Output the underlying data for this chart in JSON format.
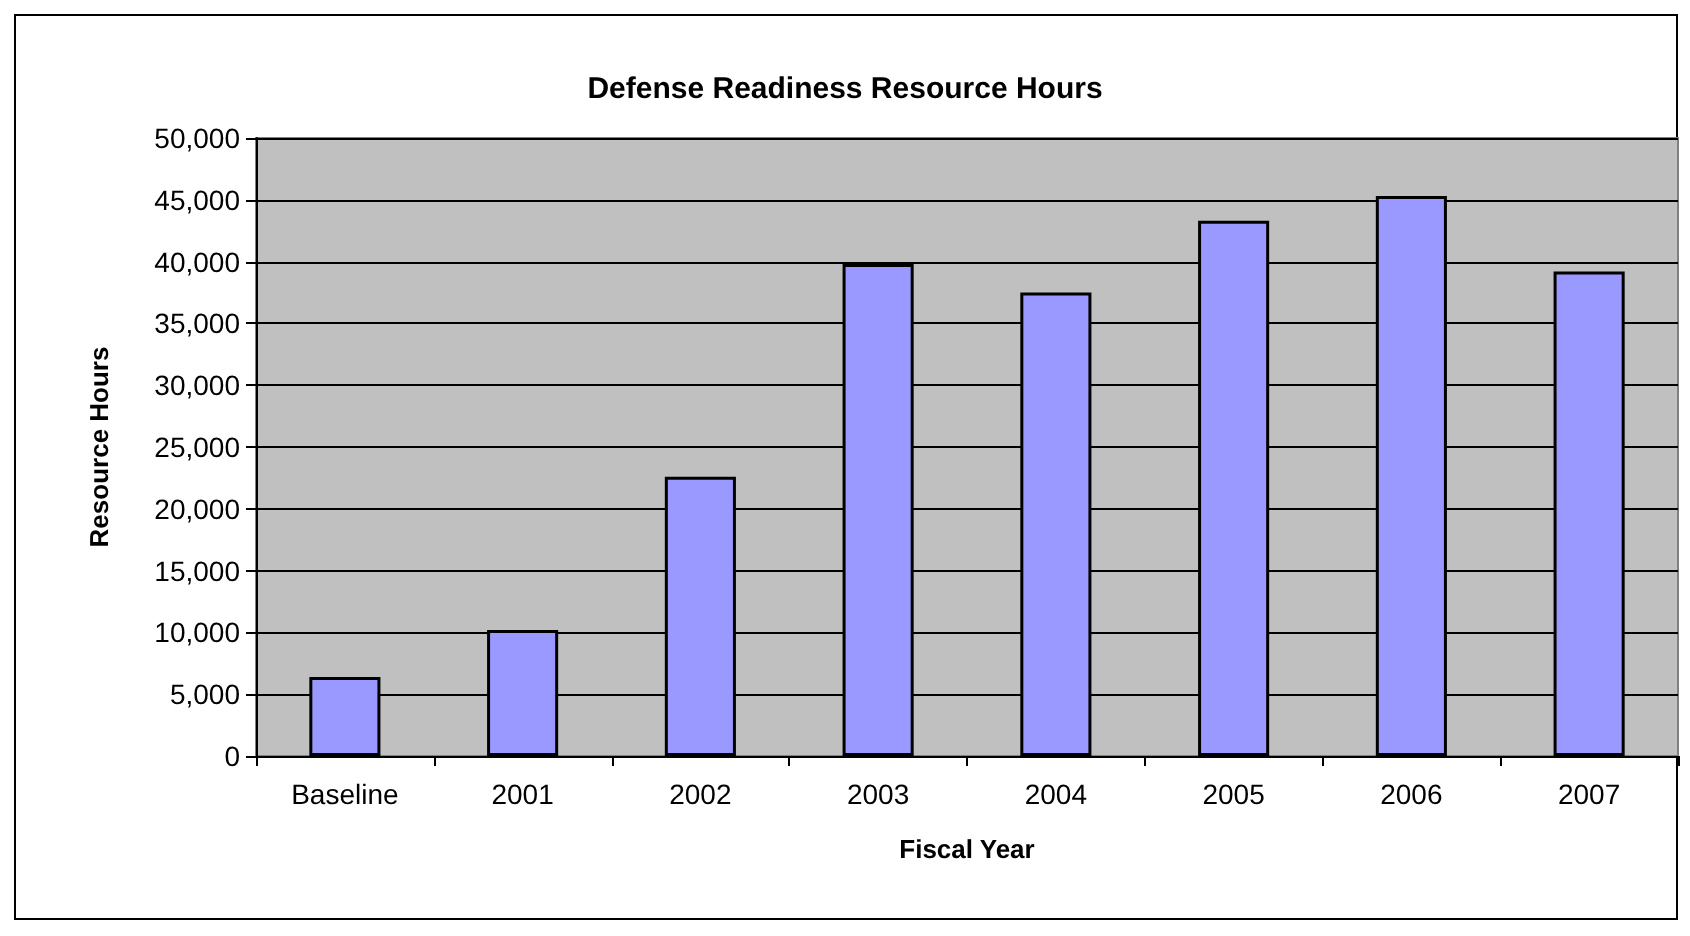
{
  "chart_data": {
    "type": "bar",
    "title": "Defense Readiness Resource Hours",
    "xlabel": "Fiscal Year",
    "ylabel": "Resource Hours",
    "categories": [
      "Baseline",
      "2001",
      "2002",
      "2003",
      "2004",
      "2005",
      "2006",
      "2007"
    ],
    "values": [
      6400,
      10200,
      22600,
      39800,
      37500,
      43300,
      45300,
      39200
    ],
    "color": "#9999ff",
    "ylim": [
      0,
      50000
    ],
    "yticks": [
      0,
      {
        "value": 5000,
        "label": "5,000"
      },
      {
        "value": 10000,
        "label": "10,000"
      },
      {
        "value": 15000,
        "label": "15,000"
      },
      {
        "value": 20000,
        "label": "20,000"
      },
      {
        "value": 25000,
        "label": "25,000"
      },
      {
        "value": 30000,
        "label": "30,000"
      },
      {
        "value": 35000,
        "label": "35,000"
      },
      {
        "value": 40000,
        "label": "40,000"
      },
      {
        "value": 45000,
        "label": "45,000"
      },
      {
        "value": 50000,
        "label": "50,000"
      }
    ],
    "grid": "y"
  }
}
